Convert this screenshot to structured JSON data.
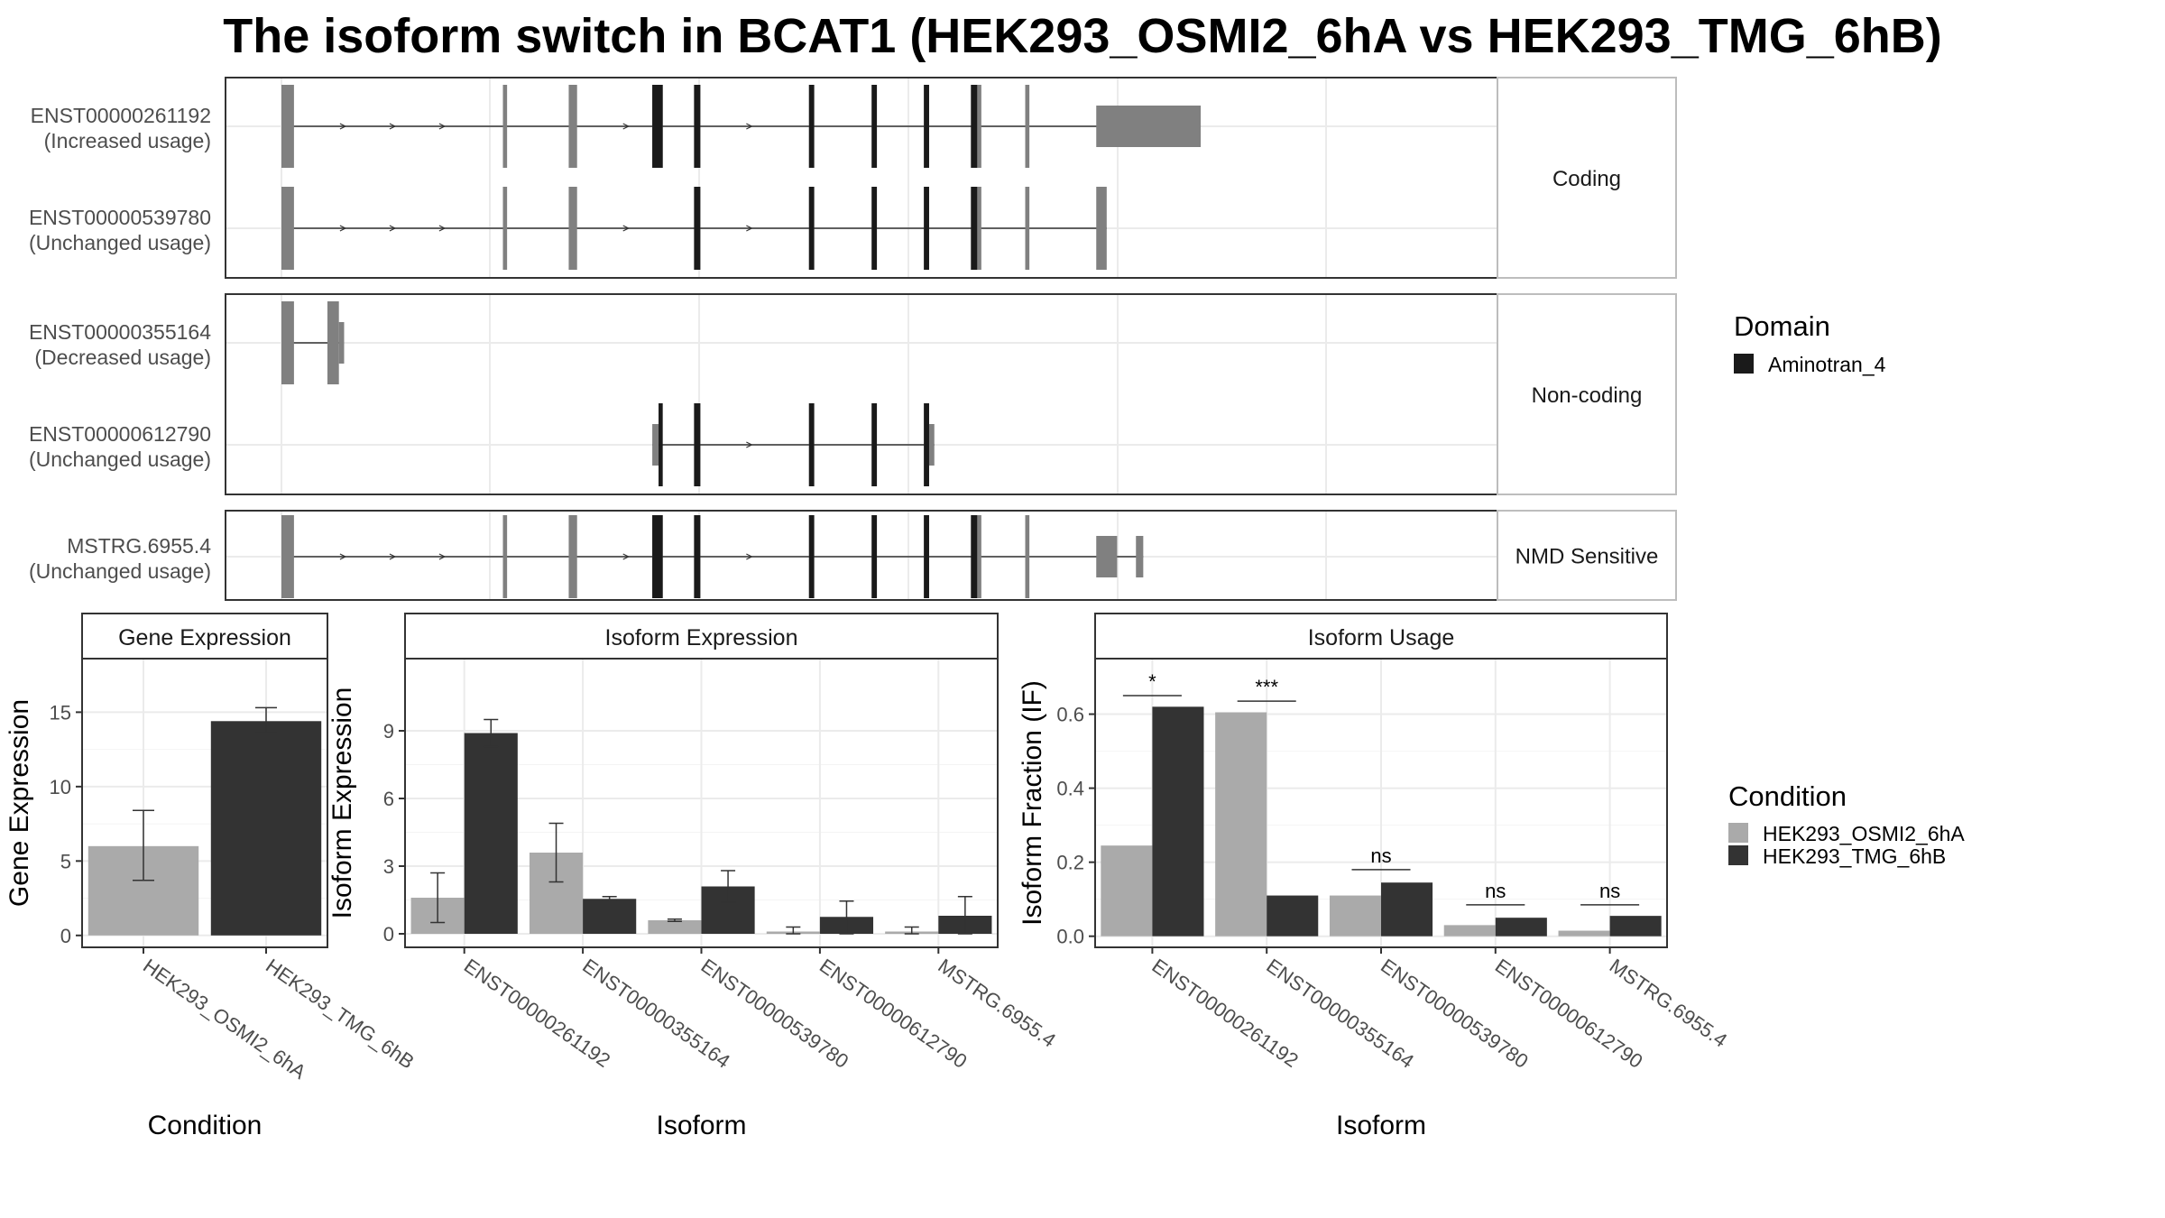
{
  "title": "The isoform switch in BCAT1 (HEK293_OSMI2_6hA vs HEK293_TMG_6hB)",
  "colors": {
    "cond1": "#aaaaaa",
    "cond2": "#333333",
    "exon": "#808080",
    "domain": "#1a1a1a",
    "panel_border": "#333333",
    "grid": "#ebebeb",
    "strip_fill": "#ffffff"
  },
  "structure": {
    "x_range": [
      0,
      100
    ],
    "groups": [
      {
        "label": "Coding",
        "transcripts": [
          {
            "label": [
              "ENST00000261192",
              "(Increased usage)"
            ],
            "exons": [
              [
                0,
                1.2
              ],
              [
                21.2,
                21.6
              ],
              [
                27.5,
                28.3
              ],
              [
                35.5,
                36.5
              ],
              [
                39.5,
                40.1
              ],
              [
                50.5,
                51.0
              ],
              [
                56.5,
                57.0
              ],
              [
                61.5,
                62.0
              ],
              [
                66.5,
                67.0
              ],
              [
                71.2,
                71.6
              ],
              [
                78.0,
                88.0
              ]
            ],
            "domains": [
              [
                35.5,
                36.5
              ],
              [
                39.5,
                40.1
              ],
              [
                50.5,
                51.0
              ],
              [
                56.5,
                57.0
              ],
              [
                61.5,
                62.0
              ],
              [
                66.0,
                66.6
              ]
            ]
          },
          {
            "label": [
              "ENST00000539780",
              "(Unchanged usage)"
            ],
            "exons": [
              [
                0,
                1.2
              ],
              [
                21.2,
                21.6
              ],
              [
                27.5,
                28.3
              ],
              [
                39.5,
                40.1
              ],
              [
                50.5,
                51.0
              ],
              [
                56.5,
                57.0
              ],
              [
                61.5,
                62.0
              ],
              [
                66.5,
                67.0
              ],
              [
                71.2,
                71.6
              ],
              [
                78.0,
                79.0
              ]
            ],
            "domains": [
              [
                39.5,
                40.1
              ],
              [
                50.5,
                51.0
              ],
              [
                56.5,
                57.0
              ],
              [
                61.5,
                62.0
              ],
              [
                66.0,
                66.6
              ]
            ]
          }
        ]
      },
      {
        "label": "Non-coding",
        "transcripts": [
          {
            "label": [
              "ENST00000355164",
              "(Decreased usage)"
            ],
            "exons": [
              [
                0,
                1.2
              ],
              [
                4.4,
                5.5
              ],
              [
                5.5,
                6.0
              ]
            ],
            "domains": []
          },
          {
            "label": [
              "ENST00000612790",
              "(Unchanged usage)"
            ],
            "exons": [
              [
                35.5,
                36.1
              ],
              [
                39.5,
                40.1
              ],
              [
                50.5,
                51.0
              ],
              [
                56.5,
                57.0
              ],
              [
                61.5,
                62.0
              ],
              [
                62.0,
                62.5
              ]
            ],
            "domains": [
              [
                36.1,
                36.5
              ],
              [
                39.5,
                40.1
              ],
              [
                50.5,
                51.0
              ],
              [
                56.5,
                57.0
              ],
              [
                61.5,
                62.0
              ]
            ]
          }
        ]
      },
      {
        "label": "NMD Sensitive",
        "transcripts": [
          {
            "label": [
              "MSTRG.6955.4",
              "(Unchanged usage)"
            ],
            "exons": [
              [
                0,
                1.2
              ],
              [
                21.2,
                21.6
              ],
              [
                27.5,
                28.3
              ],
              [
                35.5,
                36.5
              ],
              [
                39.5,
                40.1
              ],
              [
                50.5,
                51.0
              ],
              [
                56.5,
                57.0
              ],
              [
                61.5,
                62.0
              ],
              [
                66.5,
                67.0
              ],
              [
                71.2,
                71.6
              ],
              [
                78.0,
                80.0
              ],
              [
                81.8,
                82.5
              ]
            ],
            "domains": [
              [
                35.5,
                36.5
              ],
              [
                39.5,
                40.1
              ],
              [
                50.5,
                51.0
              ],
              [
                56.5,
                57.0
              ],
              [
                61.5,
                62.0
              ],
              [
                66.0,
                66.6
              ]
            ]
          }
        ]
      }
    ]
  },
  "legends": {
    "domain": {
      "title": "Domain",
      "items": [
        {
          "label": "Aminotran_4",
          "color": "#1a1a1a"
        }
      ]
    },
    "condition": {
      "title": "Condition",
      "items": [
        {
          "label": "HEK293_OSMI2_6hA",
          "color": "#aaaaaa"
        },
        {
          "label": "HEK293_TMG_6hB",
          "color": "#333333"
        }
      ]
    }
  },
  "chart_data": [
    {
      "type": "bar",
      "title": "Gene Expression",
      "xlabel": "Condition",
      "ylabel": "Gene Expression",
      "categories": [
        "HEK293_OSMI2_6hA",
        "HEK293_TMG_6hB"
      ],
      "values": [
        6.0,
        14.4
      ],
      "error_low": [
        3.7,
        13.6
      ],
      "error_high": [
        8.4,
        15.3
      ],
      "ylim": [
        -0.8,
        18.6
      ],
      "yticks": [
        0,
        5,
        10,
        15
      ],
      "grid": true
    },
    {
      "type": "bar",
      "title": "Isoform Expression",
      "xlabel": "Isoform",
      "ylabel": "Isoform Expression",
      "categories": [
        "ENST00000261192",
        "ENST00000355164",
        "ENST00000539780",
        "ENST00000612790",
        "MSTRG.6955.4"
      ],
      "series": [
        {
          "name": "HEK293_OSMI2_6hA",
          "values": [
            1.6,
            3.6,
            0.6,
            0.1,
            0.1
          ],
          "error_low": [
            0.5,
            2.3,
            0.55,
            0.0,
            0.0
          ],
          "error_high": [
            2.7,
            4.9,
            0.65,
            0.3,
            0.3
          ]
        },
        {
          "name": "HEK293_TMG_6hB",
          "values": [
            8.9,
            1.55,
            2.1,
            0.75,
            0.8
          ],
          "error_low": [
            8.3,
            1.45,
            1.4,
            0.0,
            0.0
          ],
          "error_high": [
            9.5,
            1.65,
            2.8,
            1.45,
            1.65
          ]
        }
      ],
      "ylim": [
        -0.6,
        12.2
      ],
      "yticks": [
        0,
        3,
        6,
        9
      ],
      "grid": true
    },
    {
      "type": "bar",
      "title": "Isoform Usage",
      "xlabel": "Isoform",
      "ylabel": "Isoform Fraction (IF)",
      "categories": [
        "ENST00000261192",
        "ENST00000355164",
        "ENST00000539780",
        "ENST00000612790",
        "MSTRG.6955.4"
      ],
      "series": [
        {
          "name": "HEK293_OSMI2_6hA",
          "values": [
            0.245,
            0.605,
            0.11,
            0.03,
            0.015
          ]
        },
        {
          "name": "HEK293_TMG_6hB",
          "values": [
            0.62,
            0.11,
            0.145,
            0.05,
            0.055
          ]
        }
      ],
      "significance": [
        "*",
        "***",
        "ns",
        "ns",
        "ns"
      ],
      "sig_heights": [
        0.65,
        0.635,
        0.18,
        0.085,
        0.085
      ],
      "ylim": [
        -0.03,
        0.75
      ],
      "yticks": [
        "0.0",
        "0.2",
        "0.4",
        "0.6"
      ],
      "grid": true
    }
  ]
}
